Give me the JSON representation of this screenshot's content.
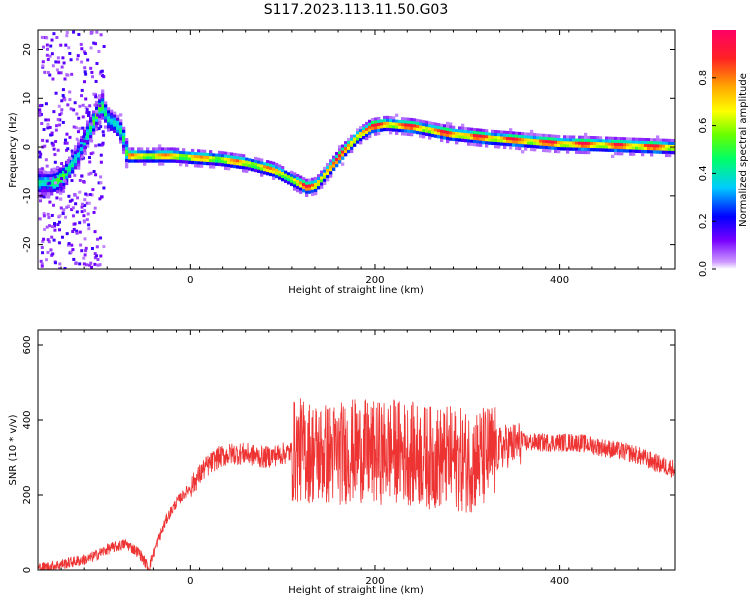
{
  "title": "S117.2023.113.11.50.G03",
  "colors": {
    "snr_line": "#ee3333",
    "colormap": [
      "#ffffff",
      "#cc99ff",
      "#7700ff",
      "#0000ff",
      "#00ccff",
      "#00ff66",
      "#66ff00",
      "#ffff00",
      "#ffaa00",
      "#ff2222",
      "#ff0066"
    ]
  },
  "chart_data": [
    {
      "type": "heatmap",
      "xlabel": "Height of straight line (km)",
      "ylabel": "Frequency (Hz)",
      "xlim": [
        -165,
        525
      ],
      "ylim": [
        -25,
        24
      ],
      "xticks": [
        0,
        200,
        400
      ],
      "yticks": [
        20,
        10,
        0,
        -10,
        -20
      ],
      "grid": false,
      "ridge": {
        "x": [
          -150,
          -140,
          -125,
          -110,
          -98,
          -90,
          -82,
          -75,
          -70,
          -50,
          -20,
          0,
          30,
          60,
          90,
          110,
          125,
          135,
          150,
          165,
          180,
          195,
          210,
          240,
          280,
          320,
          360,
          400,
          440,
          480,
          525
        ],
        "y": [
          -7,
          -6,
          -2,
          4,
          9,
          6,
          5,
          3,
          -1.5,
          -1.5,
          -1.5,
          -1.8,
          -2.2,
          -3,
          -4.5,
          -6.5,
          -8,
          -7.5,
          -4,
          -0.5,
          2.5,
          4.5,
          5,
          4.5,
          3,
          2.2,
          1.6,
          1,
          0.8,
          0.5,
          0.2
        ]
      },
      "colorbar": {
        "label": "Normalized spectral amplitude",
        "range": [
          0,
          1
        ],
        "ticks": [
          "0.0",
          "0.2",
          "0.4",
          "0.6",
          "0.8"
        ]
      }
    },
    {
      "type": "line",
      "xlabel": "Height of straight line (km)",
      "ylabel": "SNR (10 * v/v)",
      "xlim": [
        -165,
        525
      ],
      "ylim": [
        0,
        640
      ],
      "xticks": [
        0,
        200,
        400
      ],
      "yticks": [
        0,
        200,
        400,
        600
      ],
      "grid": false,
      "series": [
        {
          "x": [
            -165,
            -150,
            -130,
            -110,
            -90,
            -70,
            -55,
            -45,
            -35,
            -25,
            -15,
            0,
            15,
            30,
            45,
            60,
            80,
            100,
            120,
            140,
            160,
            180,
            200,
            220,
            240,
            260,
            280,
            300,
            320,
            340,
            360,
            380,
            400,
            420,
            440,
            460,
            480,
            500,
            510,
            525
          ],
          "y": [
            5,
            10,
            20,
            30,
            55,
            70,
            45,
            5,
            80,
            140,
            180,
            220,
            270,
            300,
            310,
            310,
            300,
            310,
            320,
            310,
            310,
            320,
            310,
            320,
            310,
            300,
            300,
            290,
            300,
            330,
            340,
            340,
            340,
            340,
            330,
            320,
            310,
            290,
            280,
            270
          ]
        }
      ]
    }
  ]
}
